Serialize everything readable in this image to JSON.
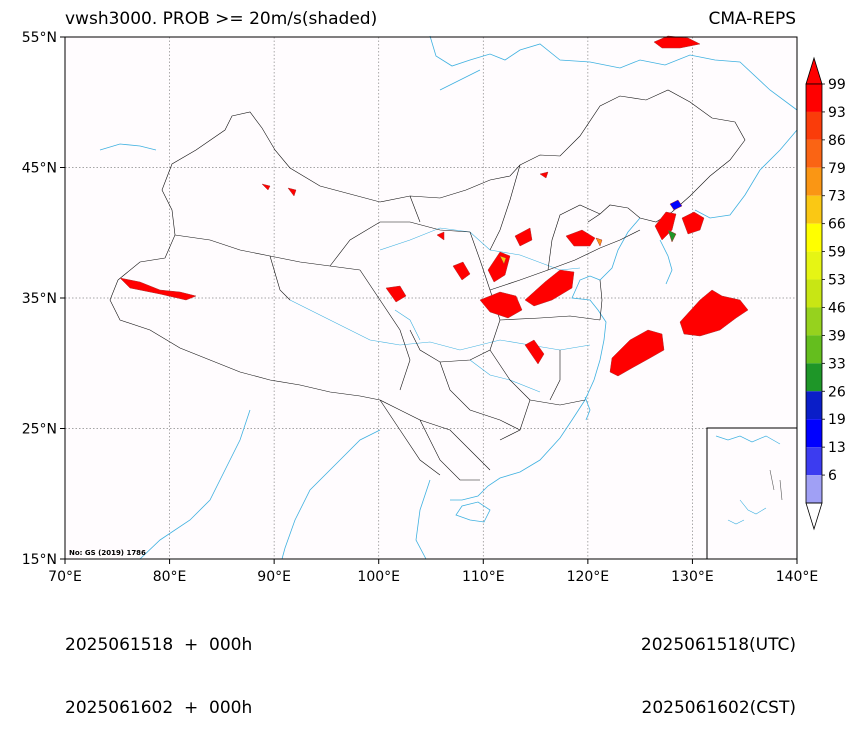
{
  "title_left": "vwsh3000. PROB >= 20m/s(shaded)",
  "title_right": "CMA-REPS",
  "footer": {
    "left": [
      "2025061518  +  000h",
      "2025061602  +  000h"
    ],
    "right": [
      "2025061518(UTC)",
      "2025061602(CST)"
    ]
  },
  "map": {
    "lon_ticks": [
      "70°E",
      "80°E",
      "90°E",
      "100°E",
      "110°E",
      "120°E",
      "130°E",
      "140°E"
    ],
    "lat_ticks": [
      "55°N",
      "45°N",
      "35°N",
      "25°N",
      "15°N"
    ],
    "extent": {
      "lon": [
        70,
        140
      ],
      "lat": [
        15,
        55
      ]
    },
    "note": "No: GS (2019) 1786",
    "colors": {
      "coast": "#3fb1e0",
      "border": "#000000",
      "grid": "#888888",
      "shade_high": "#ff0000"
    }
  },
  "colorbar": {
    "labels": [
      "99",
      "93",
      "86",
      "79",
      "73",
      "66",
      "59",
      "53",
      "46",
      "39",
      "33",
      "26",
      "19",
      "13",
      "6"
    ],
    "colors": [
      "#ff0000",
      "#fa3c0a",
      "#fa6414",
      "#fa9614",
      "#fac814",
      "#ffff00",
      "#e6f514",
      "#c8e614",
      "#96d21e",
      "#64be1e",
      "#1e9628",
      "#0a1ec8",
      "#0000ff",
      "#3c3cf0",
      "#a0a0f5"
    ],
    "extend": "both"
  }
}
